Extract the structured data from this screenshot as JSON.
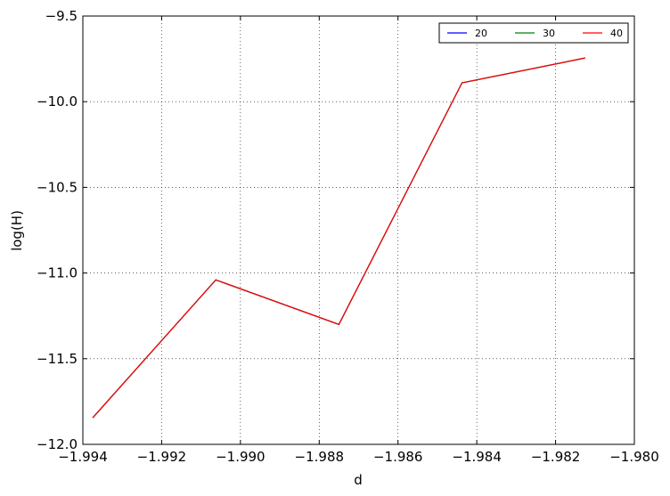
{
  "chart_data": {
    "type": "line",
    "xlabel": "d",
    "ylabel": "log(H)",
    "xlim": [
      -1.994,
      -1.98
    ],
    "ylim": [
      -12.0,
      -9.5
    ],
    "x_ticks": [
      -1.994,
      -1.992,
      -1.99,
      -1.988,
      -1.986,
      -1.984,
      -1.982,
      -1.98
    ],
    "x_tick_labels": [
      "−1.994",
      "−1.992",
      "−1.990",
      "−1.988",
      "−1.986",
      "−1.984",
      "−1.982",
      "−1.980"
    ],
    "y_ticks": [
      -12.0,
      -11.5,
      -11.0,
      -10.5,
      -10.0,
      -9.5
    ],
    "y_tick_labels": [
      "−12.0",
      "−11.5",
      "−11.0",
      "−10.5",
      "−10.0",
      "−9.5"
    ],
    "grid": true,
    "legend_position": "top-right",
    "x": [
      -1.99375,
      -1.990625,
      -1.9875,
      -1.984375,
      -1.98125
    ],
    "series": [
      {
        "name": "20",
        "color": "#0000ff",
        "values": [
          -11.845,
          -11.04,
          -11.3,
          -9.89,
          -9.745
        ]
      },
      {
        "name": "30",
        "color": "#008000",
        "values": [
          -11.845,
          -11.04,
          -11.3,
          -9.89,
          -9.745
        ]
      },
      {
        "name": "40",
        "color": "#ff0000",
        "values": [
          -11.845,
          -11.04,
          -11.3,
          -9.89,
          -9.745
        ]
      }
    ]
  }
}
